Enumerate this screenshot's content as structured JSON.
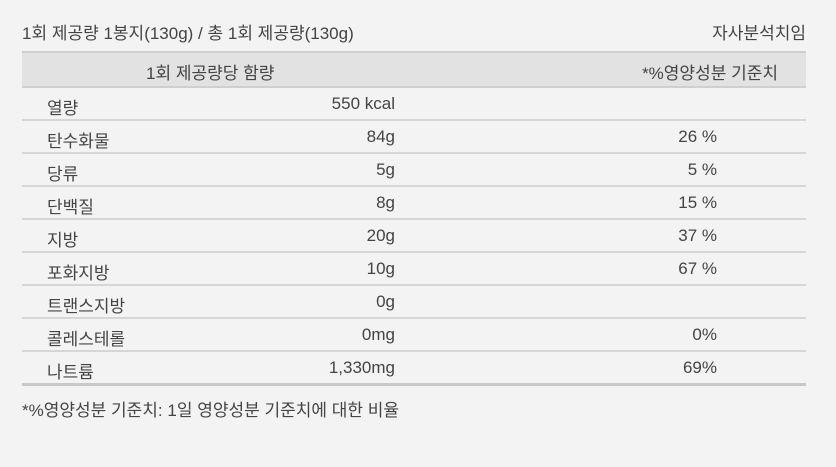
{
  "header": {
    "serving": "1회 제공량 1봉지(130g) / 총 1회 제공량(130g)",
    "source": "자사분석치임"
  },
  "table": {
    "columns": [
      "1회 제공량당 함량",
      "*%영양성분 기준치"
    ],
    "rows": [
      {
        "name": "열량",
        "amount": "550 kcal",
        "percent": ""
      },
      {
        "name": "탄수화물",
        "amount": "84g",
        "percent": "26 %"
      },
      {
        "name": "당류",
        "amount": "5g",
        "percent": "5 %"
      },
      {
        "name": "단백질",
        "amount": "8g",
        "percent": "15 %"
      },
      {
        "name": "지방",
        "amount": "20g",
        "percent": "37 %"
      },
      {
        "name": "포화지방",
        "amount": "10g",
        "percent": "67 %"
      },
      {
        "name": "트랜스지방",
        "amount": "0g",
        "percent": ""
      },
      {
        "name": "콜레스테롤",
        "amount": "0mg",
        "percent": "0%"
      },
      {
        "name": "나트륨",
        "amount": "1,330mg",
        "percent": "69%"
      }
    ]
  },
  "footnote": "*%영양성분 기준치: 1일 영양성분 기준치에 대한 비율"
}
